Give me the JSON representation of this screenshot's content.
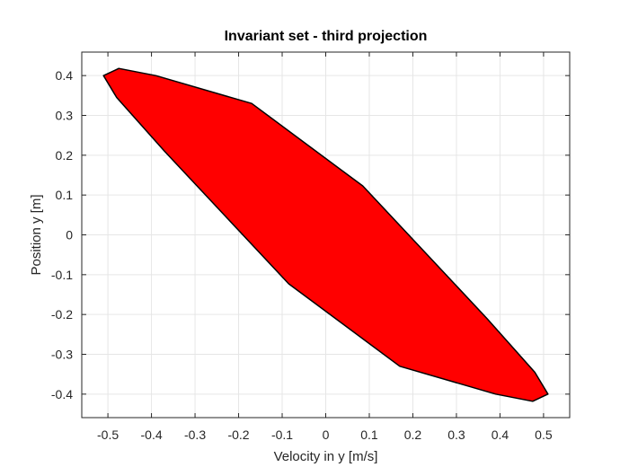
{
  "chart_data": {
    "type": "area",
    "title": "Invariant set - third projection",
    "xlabel": "Velocity in y [m/s]",
    "ylabel": "Position y [m]",
    "xlim": [
      -0.56,
      0.56
    ],
    "ylim": [
      -0.459,
      0.459
    ],
    "xticks": [
      -0.5,
      -0.4,
      -0.3,
      -0.2,
      -0.1,
      0,
      0.1,
      0.2,
      0.3,
      0.4,
      0.5
    ],
    "xtick_labels": [
      "-0.5",
      "-0.4",
      "-0.3",
      "-0.2",
      "-0.1",
      "0",
      "0.1",
      "0.2",
      "0.3",
      "0.4",
      "0.5"
    ],
    "yticks": [
      -0.4,
      -0.3,
      -0.2,
      -0.1,
      0,
      0.1,
      0.2,
      0.3,
      0.4
    ],
    "ytick_labels": [
      "-0.4",
      "-0.3",
      "-0.2",
      "-0.1",
      "0",
      "0.1",
      "0.2",
      "0.3",
      "0.4"
    ],
    "grid": true,
    "series": [
      {
        "fill_color": "#ff0000",
        "edge_color": "#000000",
        "polygon": [
          {
            "x": -0.51,
            "y": 0.4
          },
          {
            "x": -0.475,
            "y": 0.418
          },
          {
            "x": -0.39,
            "y": 0.4
          },
          {
            "x": -0.17,
            "y": 0.33
          },
          {
            "x": 0.085,
            "y": 0.123
          },
          {
            "x": 0.37,
            "y": -0.21
          },
          {
            "x": 0.48,
            "y": -0.345
          },
          {
            "x": 0.51,
            "y": -0.4
          },
          {
            "x": 0.475,
            "y": -0.418
          },
          {
            "x": 0.39,
            "y": -0.4
          },
          {
            "x": 0.17,
            "y": -0.33
          },
          {
            "x": -0.085,
            "y": -0.123
          },
          {
            "x": -0.37,
            "y": 0.21
          },
          {
            "x": -0.48,
            "y": 0.345
          }
        ]
      }
    ]
  }
}
